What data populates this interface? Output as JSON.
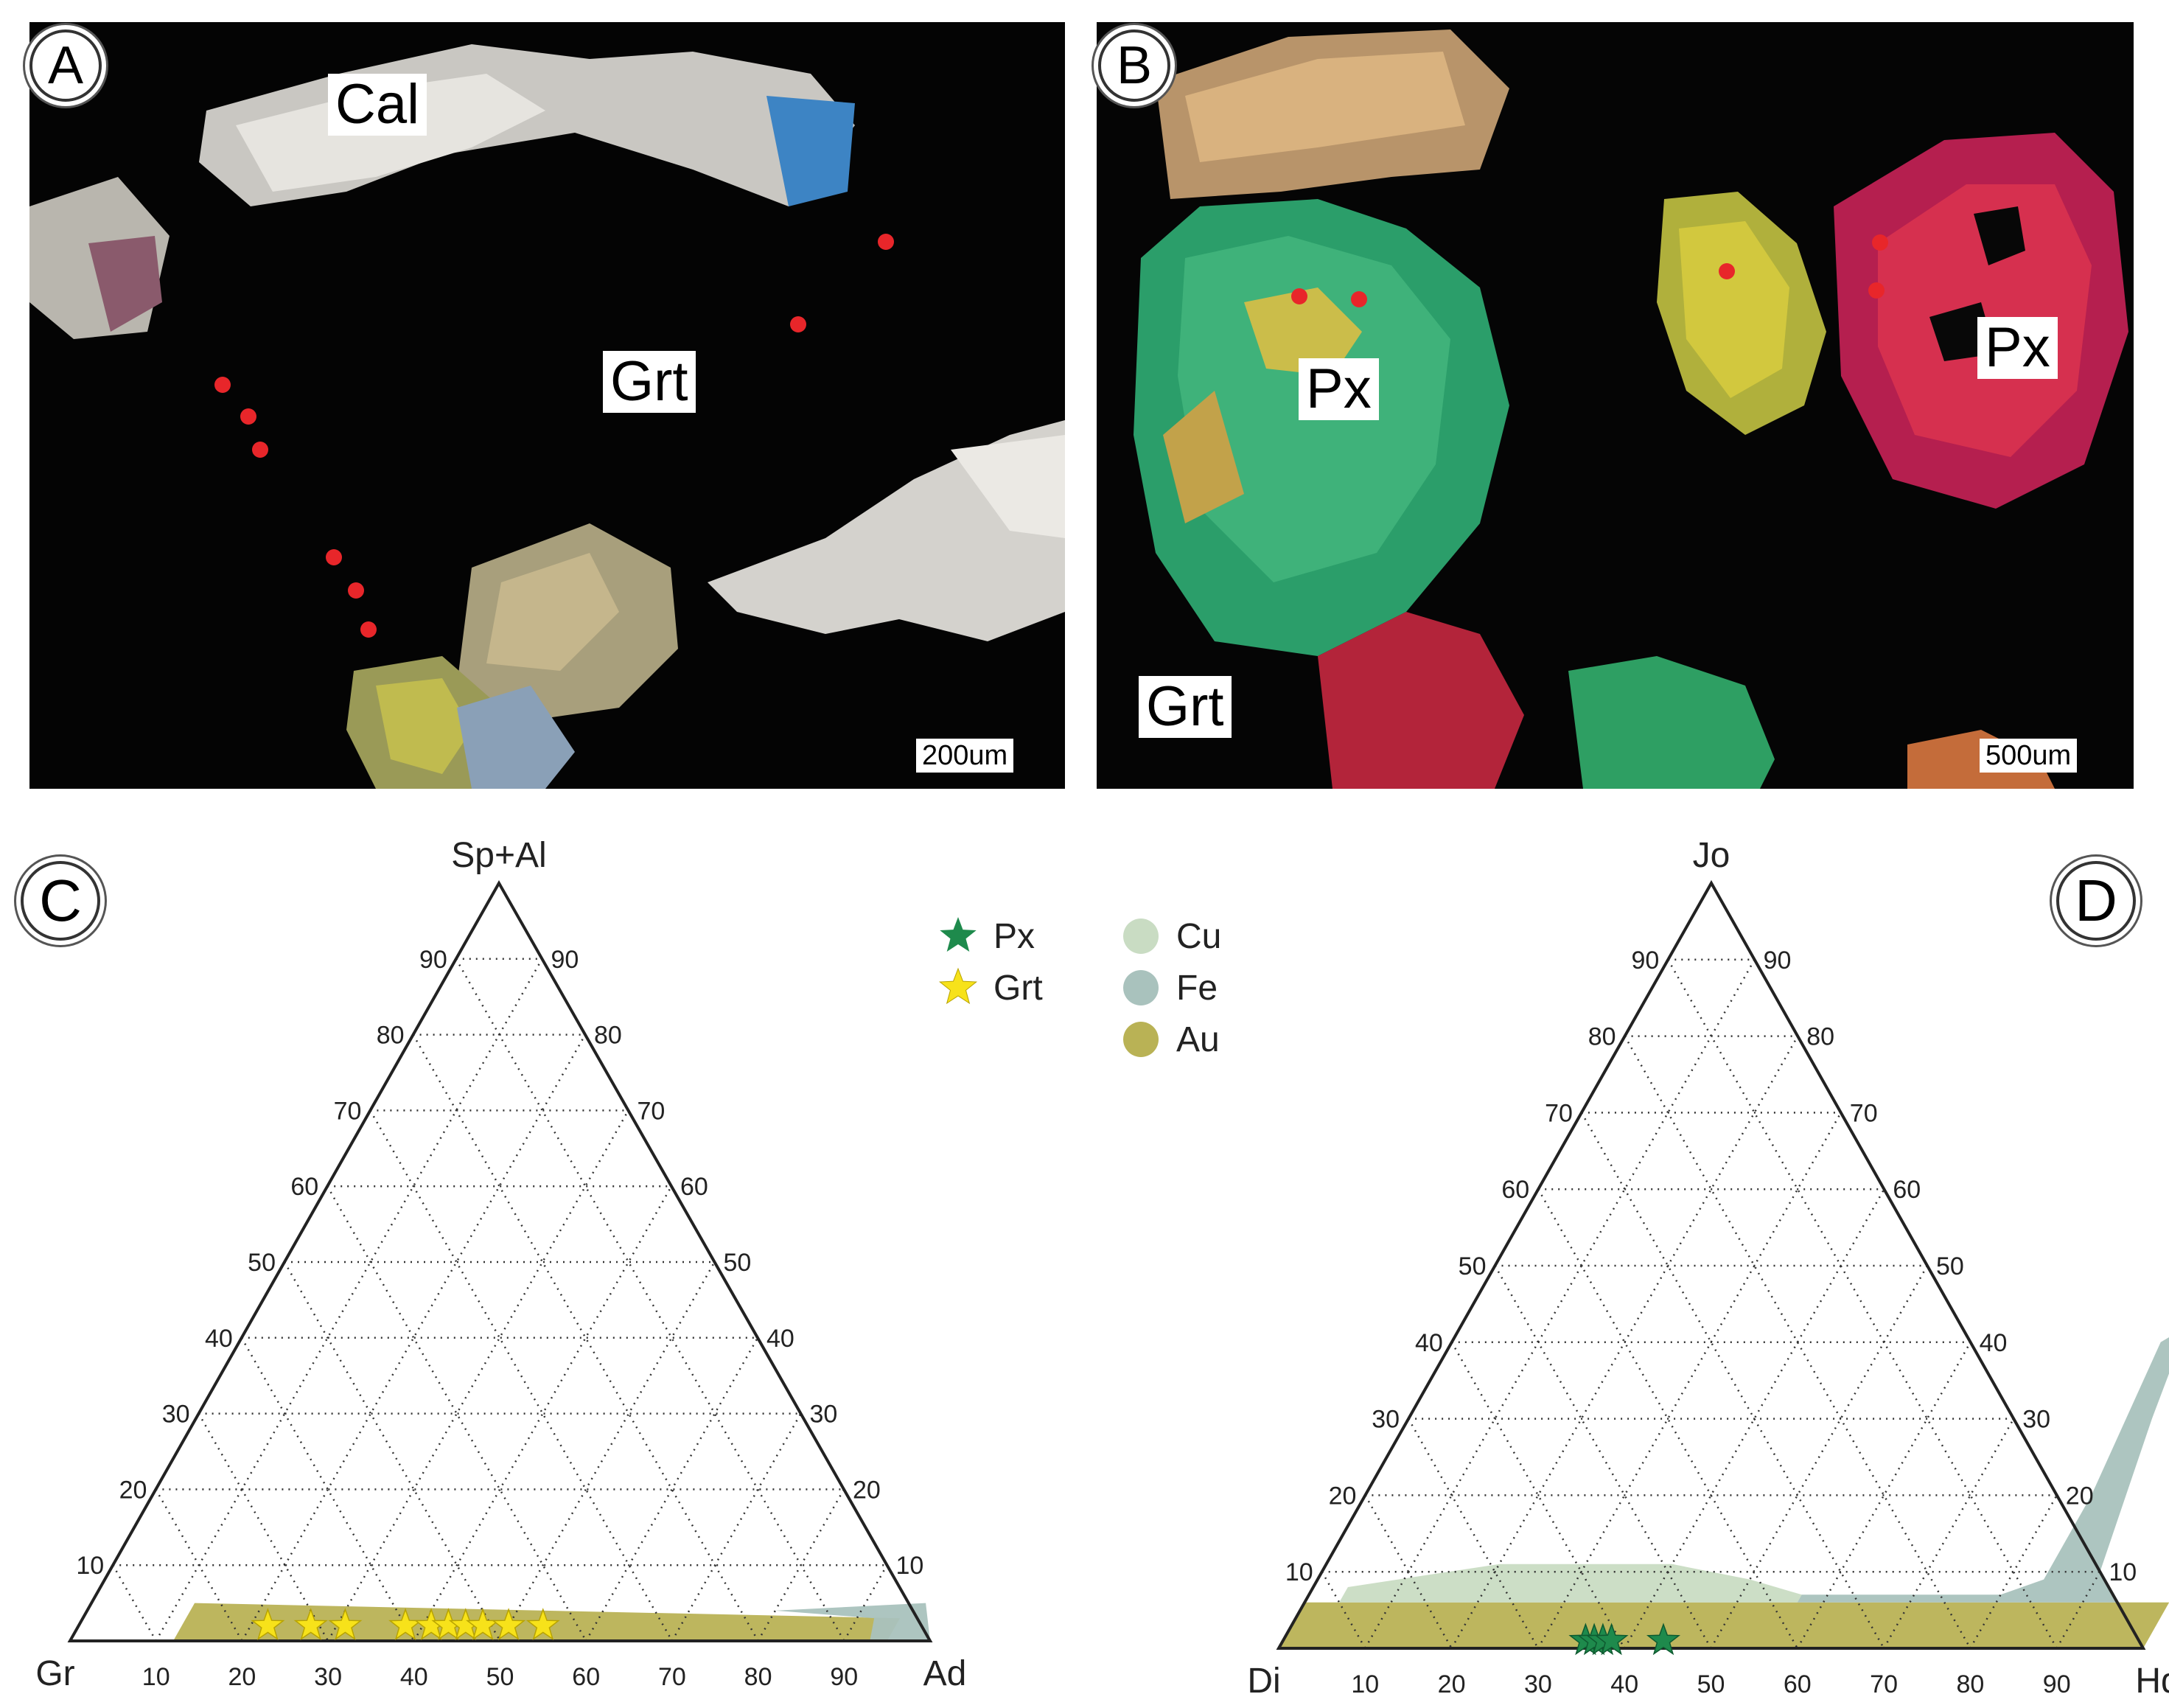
{
  "panels": {
    "A": {
      "letter": "A",
      "labels": [
        "Cal",
        "Grt"
      ],
      "scale": "200um"
    },
    "B": {
      "letter": "B",
      "labels": [
        "Px",
        "Px",
        "Grt"
      ],
      "scale": "500um"
    },
    "C": {
      "letter": "C",
      "apex_top": "Sp+Al",
      "apex_left": "Gr",
      "apex_right": "Ad",
      "ticks": [
        "10",
        "20",
        "30",
        "40",
        "50",
        "60",
        "70",
        "80",
        "90"
      ]
    },
    "D": {
      "letter": "D",
      "apex_top": "Jo",
      "apex_left": "Di",
      "apex_right": "Hd",
      "ticks": [
        "10",
        "20",
        "30",
        "40",
        "50",
        "60",
        "70",
        "80",
        "90"
      ]
    }
  },
  "legend": {
    "px": "Px",
    "grt": "Grt",
    "cu": "Cu",
    "fe": "Fe",
    "au": "Au"
  },
  "colors": {
    "px": "#1e8a4c",
    "grt": "#f7e21a",
    "cu": "#c9dcc3",
    "fe": "#a9c2bd",
    "au": "#b9b255"
  },
  "chart_data": [
    {
      "type": "ternary",
      "panel": "C",
      "axes": [
        "Gr",
        "Ad",
        "Sp+Al"
      ],
      "series": [
        {
          "name": "Grt",
          "points": [
            {
              "Ad": 22,
              "SpAl": 2
            },
            {
              "Ad": 27,
              "SpAl": 2
            },
            {
              "Ad": 31,
              "SpAl": 2
            },
            {
              "Ad": 38,
              "SpAl": 2
            },
            {
              "Ad": 41,
              "SpAl": 2
            },
            {
              "Ad": 43,
              "SpAl": 2
            },
            {
              "Ad": 45,
              "SpAl": 2
            },
            {
              "Ad": 47,
              "SpAl": 2
            },
            {
              "Ad": 50,
              "SpAl": 2
            },
            {
              "Ad": 54,
              "SpAl": 2
            }
          ]
        }
      ],
      "fields": [
        {
          "name": "Au",
          "outline": [
            {
              "Ad": 12,
              "SpAl": 0
            },
            {
              "Ad": 95,
              "SpAl": 0
            },
            {
              "Ad": 95,
              "SpAl": 3
            },
            {
              "Ad": 12,
              "SpAl": 5
            }
          ]
        },
        {
          "name": "Fe",
          "outline": [
            {
              "Ad": 80,
              "SpAl": 4
            },
            {
              "Ad": 97,
              "SpAl": 5
            },
            {
              "Ad": 100,
              "SpAl": 0
            },
            {
              "Ad": 93,
              "SpAl": 0
            },
            {
              "Ad": 92,
              "SpAl": 3
            }
          ]
        }
      ]
    },
    {
      "type": "ternary",
      "panel": "D",
      "axes": [
        "Di",
        "Hd",
        "Jo"
      ],
      "series": [
        {
          "name": "Px",
          "points": [
            {
              "Hd": 35,
              "Jo": 1
            },
            {
              "Hd": 36,
              "Jo": 1
            },
            {
              "Hd": 37,
              "Jo": 1
            },
            {
              "Hd": 38,
              "Jo": 1
            },
            {
              "Hd": 44,
              "Jo": 1
            }
          ]
        }
      ],
      "fields": [
        {
          "name": "Au",
          "outline": [
            {
              "Hd": 0,
              "Jo": 0
            },
            {
              "Hd": 100,
              "Jo": 0
            },
            {
              "Hd": 100,
              "Jo": 6
            },
            {
              "Hd": 0,
              "Jo": 6
            }
          ]
        },
        {
          "name": "Cu",
          "outline": [
            {
              "Hd": 4,
              "Jo": 8
            },
            {
              "Hd": 20,
              "Jo": 11
            },
            {
              "Hd": 40,
              "Jo": 11
            },
            {
              "Hd": 50,
              "Jo": 9
            },
            {
              "Hd": 57,
              "Jo": 7
            },
            {
              "Hd": 57,
              "Jo": 6
            },
            {
              "Hd": 4,
              "Jo": 6
            }
          ]
        },
        {
          "name": "Fe",
          "outline": [
            {
              "Hd": 57,
              "Jo": 7
            },
            {
              "Hd": 80,
              "Jo": 7
            },
            {
              "Hd": 84,
              "Jo": 9
            },
            {
              "Hd": 84,
              "Jo": 20
            },
            {
              "Hd": 82,
              "Jo": 40
            },
            {
              "Hd": 84,
              "Jo": 42
            },
            {
              "Hd": 86,
              "Jo": 30
            },
            {
              "Hd": 90,
              "Jo": 10
            },
            {
              "Hd": 94,
              "Jo": 6
            },
            {
              "Hd": 57,
              "Jo": 6
            }
          ]
        }
      ]
    }
  ]
}
